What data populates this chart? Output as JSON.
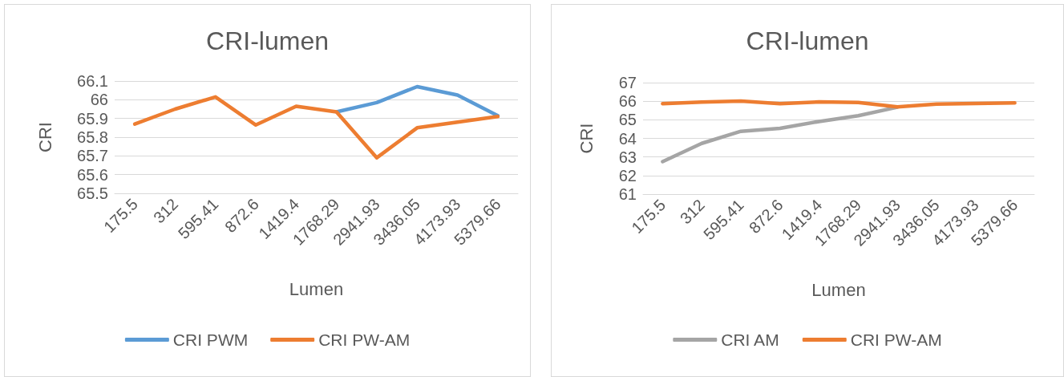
{
  "chart_data": [
    {
      "type": "line",
      "title": "CRI-lumen",
      "xlabel": "Lumen",
      "ylabel": "CRI",
      "categories": [
        "175.5",
        "312",
        "595.41",
        "872.6",
        "1419.4",
        "1768.29",
        "2941.93",
        "3436.05",
        "4173.93",
        "5379.66"
      ],
      "series": [
        {
          "name": "CRI PWM",
          "color": "#5b9bd5",
          "values": [
            null,
            null,
            null,
            null,
            null,
            65.935,
            65.985,
            66.07,
            66.025,
            65.915
          ]
        },
        {
          "name": "CRI PW-AM",
          "color": "#ed7d31",
          "values": [
            65.87,
            65.95,
            66.015,
            65.865,
            65.965,
            65.935,
            65.69,
            65.85,
            65.88,
            65.91
          ]
        }
      ],
      "ylim": [
        65.5,
        66.1
      ],
      "yticks": [
        65.5,
        65.6,
        65.7,
        65.8,
        65.9,
        66,
        66.1
      ],
      "grid": "y",
      "legend": "bottom",
      "marker": "none",
      "line_style": "solid"
    },
    {
      "type": "line",
      "title": "CRI-lumen",
      "xlabel": "Lumen",
      "ylabel": "CRI",
      "categories": [
        "175.5",
        "312",
        "595.41",
        "872.6",
        "1419.4",
        "1768.29",
        "2941.93",
        "3436.05",
        "4173.93",
        "5379.66"
      ],
      "series": [
        {
          "name": "CRI AM",
          "color": "#a5a5a5",
          "values": [
            62.75,
            63.73,
            64.38,
            64.54,
            64.91,
            65.22,
            65.68,
            null,
            null,
            null
          ]
        },
        {
          "name": "CRI PW-AM",
          "color": "#ed7d31",
          "values": [
            65.87,
            65.95,
            66.01,
            65.87,
            65.96,
            65.93,
            65.69,
            65.85,
            65.88,
            65.91
          ]
        }
      ],
      "ylim": [
        61,
        67
      ],
      "yticks": [
        61,
        62,
        63,
        64,
        65,
        66,
        67
      ],
      "grid": "y",
      "legend": "bottom",
      "marker": "none",
      "line_style": "solid"
    }
  ]
}
